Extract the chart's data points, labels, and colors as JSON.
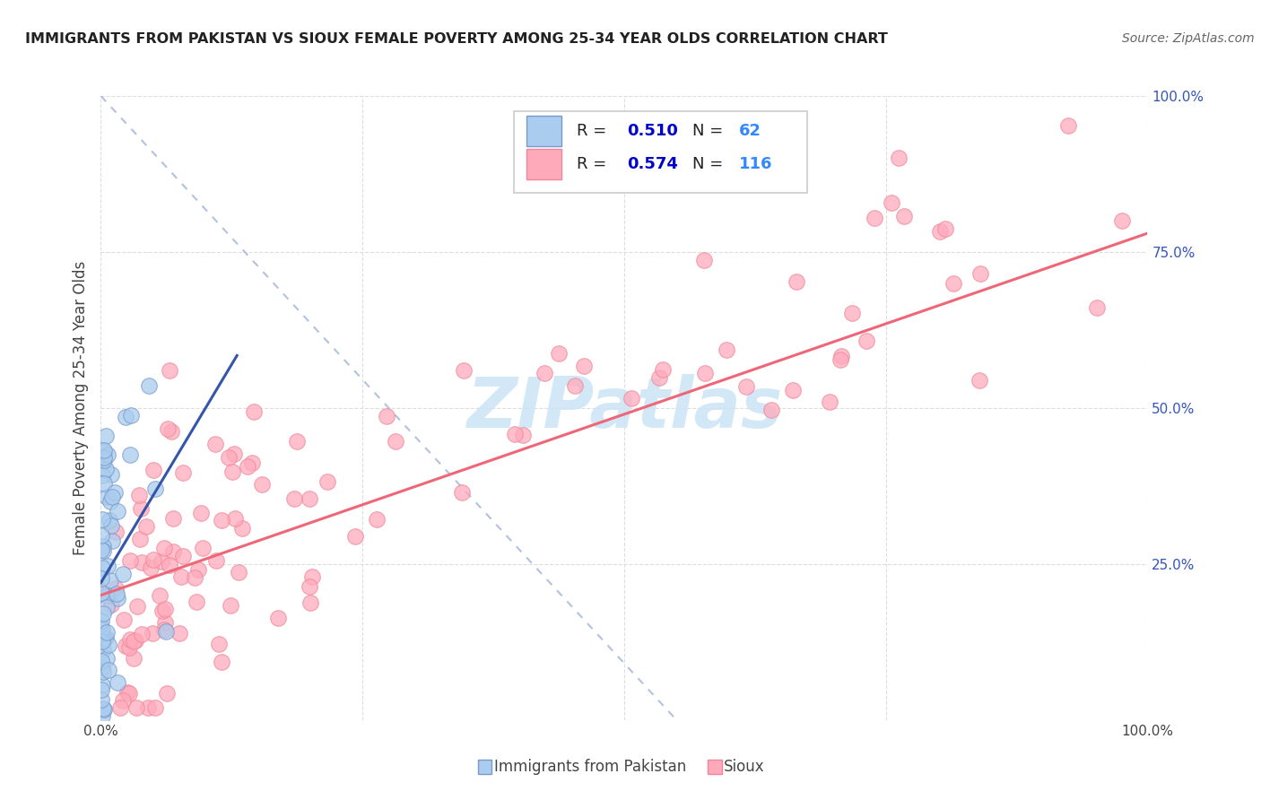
{
  "title": "IMMIGRANTS FROM PAKISTAN VS SIOUX FEMALE POVERTY AMONG 25-34 YEAR OLDS CORRELATION CHART",
  "source": "Source: ZipAtlas.com",
  "ylabel": "Female Poverty Among 25-34 Year Olds",
  "xlim": [
    0,
    1
  ],
  "ylim": [
    0,
    1
  ],
  "xticks": [
    0.0,
    0.25,
    0.5,
    0.75,
    1.0
  ],
  "yticks": [
    0.0,
    0.25,
    0.5,
    0.75,
    1.0
  ],
  "xticklabels": [
    "0.0%",
    "",
    "",
    "",
    "100.0%"
  ],
  "yticklabels": [
    "",
    "25.0%",
    "50.0%",
    "75.0%",
    "100.0%"
  ],
  "legend_blue_label": "Immigrants from Pakistan",
  "legend_pink_label": "Sioux",
  "R_blue": 0.51,
  "N_blue": 62,
  "R_pink": 0.574,
  "N_pink": 116,
  "blue_fill": "#aaccee",
  "blue_edge": "#7799cc",
  "pink_fill": "#ffaabb",
  "pink_edge": "#ee8899",
  "blue_line_color": "#3355aa",
  "pink_line_color": "#ee6677",
  "diag_color": "#aabbdd",
  "watermark_color": "#cce4f5",
  "background_color": "#ffffff",
  "grid_color": "#dddddd",
  "R_text_color": "#0000cc",
  "N_text_color": "#3388ff"
}
